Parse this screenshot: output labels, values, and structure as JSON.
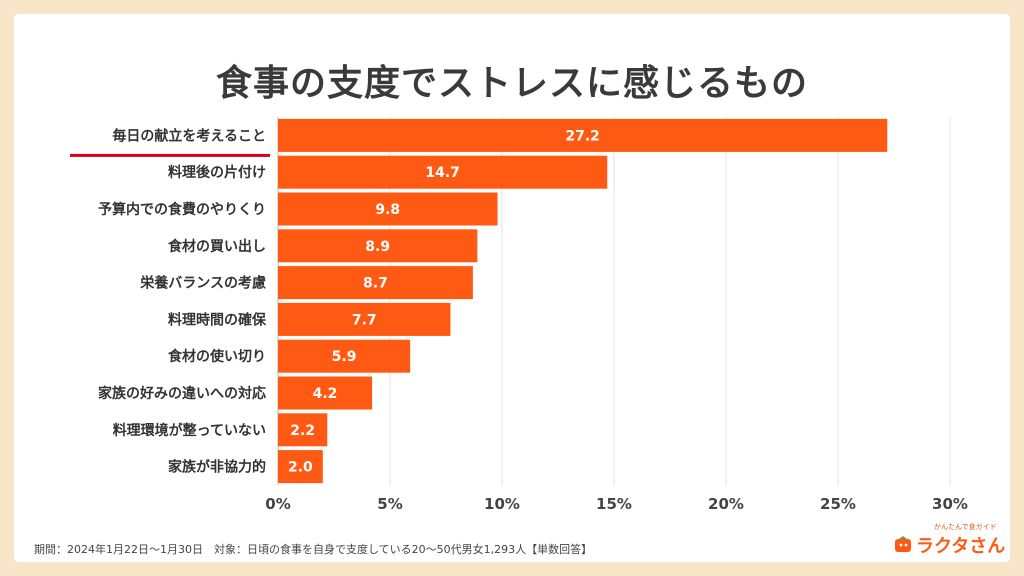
{
  "chart_data": {
    "type": "bar",
    "orientation": "horizontal",
    "title": "食事の支度でストレスに感じるもの",
    "categories": [
      "毎日の献立を考えること",
      "料理後の片付け",
      "予算内での食費のやりくり",
      "食材の買い出し",
      "栄養バランスの考慮",
      "料理時間の確保",
      "食材の使い切り",
      "家族の好みの違いへの対応",
      "料理環境が整っていない",
      "家族が非協力的"
    ],
    "values": [
      27.2,
      14.7,
      9.8,
      8.9,
      8.7,
      7.7,
      5.9,
      4.2,
      2.2,
      2.0
    ],
    "value_labels": [
      "27.2",
      "14.7",
      "9.8",
      "8.9",
      "8.7",
      "7.7",
      "5.9",
      "4.2",
      "2.2",
      "2.0"
    ],
    "xticks": [
      "0%",
      "5%",
      "10%",
      "15%",
      "20%",
      "25%",
      "30%"
    ],
    "xlim": [
      0,
      30
    ],
    "grid": true,
    "bar_color": "#ff5a14",
    "highlight_underline_color": "#d9001b",
    "highlighted_category": 0
  },
  "footer": {
    "text": "期間：2024年1月22日〜1月30日　対象：日頃の食事を自身で支度している20〜50代男女1,293人【単数回答】"
  },
  "logo": {
    "tagline": "かんたんで食ガイド",
    "name": "ラクタさん"
  }
}
